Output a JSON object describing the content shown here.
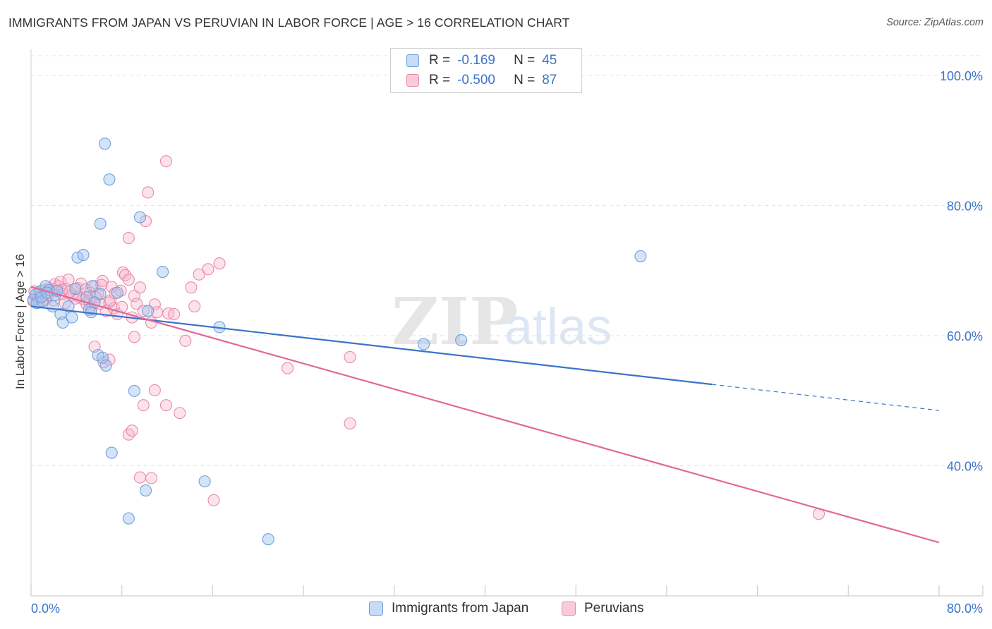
{
  "title": "IMMIGRANTS FROM JAPAN VS PERUVIAN IN LABOR FORCE | AGE > 16 CORRELATION CHART",
  "source": "Source: ZipAtlas.com",
  "watermark": {
    "zip": "ZIP",
    "atlas": "atlas"
  },
  "legend": {
    "r_label": "R =",
    "n_label": "N =",
    "series": [
      {
        "name": "Immigrants from Japan",
        "r": "-0.169",
        "n": "45",
        "color": "#3a74c9"
      },
      {
        "name": "Peruvians",
        "r": "-0.500",
        "n": "87",
        "color": "#e06a95"
      }
    ]
  },
  "chart_data": {
    "type": "scatter",
    "title": "IMMIGRANTS FROM JAPAN VS PERUVIAN IN LABOR FORCE | AGE > 16 CORRELATION CHART",
    "xlabel": "",
    "ylabel": "In Labor Force | Age > 16",
    "xlim": [
      0,
      80
    ],
    "ylim": [
      20,
      104
    ],
    "x_tick_labels": [
      "0.0%",
      "80.0%"
    ],
    "y_ticks": [
      {
        "value": 100,
        "label": "100.0%"
      },
      {
        "value": 80,
        "label": "80.0%"
      },
      {
        "value": 60,
        "label": "60.0%"
      },
      {
        "value": 40,
        "label": "40.0%"
      }
    ],
    "series": [
      {
        "name": "Immigrants from Japan",
        "color": "#3a74c9",
        "trend": {
          "x_start": 0,
          "y_start": 64.5,
          "x_solid_end": 60,
          "x_end": 80,
          "y_end": 48.5
        },
        "points": [
          [
            0.2,
            65.5
          ],
          [
            0.4,
            66.3
          ],
          [
            0.5,
            65.0
          ],
          [
            0.8,
            66.8
          ],
          [
            1.0,
            65.3
          ],
          [
            1.3,
            67.6
          ],
          [
            1.6,
            67.0
          ],
          [
            1.9,
            64.5
          ],
          [
            2.1,
            66.2
          ],
          [
            2.6,
            63.3
          ],
          [
            2.8,
            62.0
          ],
          [
            3.3,
            64.5
          ],
          [
            3.6,
            62.8
          ],
          [
            3.9,
            67.2
          ],
          [
            4.1,
            72.0
          ],
          [
            4.6,
            72.4
          ],
          [
            4.9,
            65.9
          ],
          [
            5.1,
            64.0
          ],
          [
            5.3,
            63.6
          ],
          [
            5.6,
            65.1
          ],
          [
            5.4,
            67.6
          ],
          [
            6.1,
            66.4
          ],
          [
            5.9,
            57.0
          ],
          [
            6.3,
            56.6
          ],
          [
            6.6,
            55.4
          ],
          [
            6.1,
            77.2
          ],
          [
            6.5,
            89.5
          ],
          [
            6.9,
            84.0
          ],
          [
            7.1,
            42.0
          ],
          [
            7.6,
            66.6
          ],
          [
            8.6,
            31.9
          ],
          [
            9.1,
            51.5
          ],
          [
            9.6,
            78.2
          ],
          [
            10.1,
            36.2
          ],
          [
            10.3,
            63.8
          ],
          [
            11.6,
            69.8
          ],
          [
            15.3,
            37.6
          ],
          [
            16.6,
            61.3
          ],
          [
            20.9,
            28.7
          ],
          [
            34.6,
            58.7
          ],
          [
            37.9,
            59.3
          ],
          [
            53.7,
            72.2
          ],
          [
            0.9,
            65.9
          ],
          [
            1.4,
            66.6
          ],
          [
            2.3,
            66.9
          ]
        ]
      },
      {
        "name": "Peruvians",
        "color": "#e06a95",
        "trend": {
          "x_start": 0,
          "y_start": 67.5,
          "x_end": 80,
          "y_end": 28.2
        },
        "points": [
          [
            0.2,
            65.3
          ],
          [
            0.4,
            66.0
          ],
          [
            0.6,
            65.8
          ],
          [
            0.9,
            66.4
          ],
          [
            1.1,
            67.0
          ],
          [
            1.3,
            65.5
          ],
          [
            1.6,
            67.3
          ],
          [
            1.9,
            66.9
          ],
          [
            2.1,
            67.9
          ],
          [
            2.4,
            67.6
          ],
          [
            2.6,
            68.3
          ],
          [
            2.8,
            66.4
          ],
          [
            3.1,
            67.2
          ],
          [
            3.3,
            68.6
          ],
          [
            3.6,
            66.2
          ],
          [
            3.9,
            65.7
          ],
          [
            4.1,
            67.3
          ],
          [
            4.4,
            68.0
          ],
          [
            4.6,
            65.6
          ],
          [
            4.9,
            64.8
          ],
          [
            5.1,
            65.3
          ],
          [
            5.3,
            64.0
          ],
          [
            5.6,
            67.6
          ],
          [
            5.9,
            66.4
          ],
          [
            6.1,
            64.9
          ],
          [
            6.3,
            68.4
          ],
          [
            6.6,
            63.8
          ],
          [
            6.9,
            65.1
          ],
          [
            7.1,
            67.5
          ],
          [
            7.3,
            64.2
          ],
          [
            7.6,
            63.3
          ],
          [
            7.9,
            66.9
          ],
          [
            8.1,
            69.7
          ],
          [
            8.3,
            69.3
          ],
          [
            8.6,
            68.6
          ],
          [
            8.9,
            62.8
          ],
          [
            9.1,
            66.1
          ],
          [
            9.3,
            64.9
          ],
          [
            9.6,
            67.4
          ],
          [
            9.9,
            63.8
          ],
          [
            10.1,
            77.6
          ],
          [
            10.3,
            82.0
          ],
          [
            10.6,
            62.0
          ],
          [
            10.9,
            64.8
          ],
          [
            11.1,
            63.6
          ],
          [
            11.9,
            86.8
          ],
          [
            12.1,
            63.4
          ],
          [
            12.6,
            63.3
          ],
          [
            13.1,
            48.1
          ],
          [
            13.6,
            59.2
          ],
          [
            14.1,
            67.4
          ],
          [
            14.4,
            64.5
          ],
          [
            14.8,
            69.4
          ],
          [
            15.6,
            70.2
          ],
          [
            16.6,
            71.1
          ],
          [
            16.1,
            34.7
          ],
          [
            8.6,
            75.0
          ],
          [
            9.1,
            59.8
          ],
          [
            5.6,
            58.3
          ],
          [
            6.4,
            55.9
          ],
          [
            6.9,
            56.3
          ],
          [
            8.6,
            44.8
          ],
          [
            8.9,
            45.4
          ],
          [
            9.9,
            49.3
          ],
          [
            10.9,
            51.6
          ],
          [
            9.6,
            38.2
          ],
          [
            10.6,
            38.1
          ],
          [
            11.9,
            49.3
          ],
          [
            22.6,
            55.0
          ],
          [
            28.1,
            56.7
          ],
          [
            28.1,
            46.5
          ],
          [
            69.4,
            32.6
          ],
          [
            0.3,
            66.8
          ],
          [
            0.7,
            65.1
          ],
          [
            1.5,
            66.2
          ],
          [
            2.0,
            65.4
          ],
          [
            2.7,
            67.0
          ],
          [
            3.0,
            65.0
          ],
          [
            3.4,
            66.7
          ],
          [
            4.2,
            66.0
          ],
          [
            4.8,
            67.1
          ],
          [
            5.2,
            66.6
          ],
          [
            5.7,
            65.9
          ],
          [
            6.2,
            67.8
          ],
          [
            7.0,
            65.4
          ],
          [
            7.4,
            66.5
          ],
          [
            8.0,
            64.4
          ]
        ]
      }
    ]
  }
}
